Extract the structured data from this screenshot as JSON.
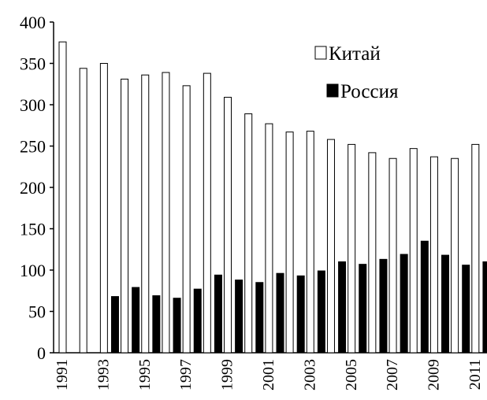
{
  "chart_data": {
    "type": "bar",
    "categories": [
      "1991",
      null,
      "1993",
      null,
      "1995",
      null,
      "1997",
      null,
      "1999",
      null,
      "2001",
      null,
      "2003",
      null,
      "2005",
      null,
      "2007",
      null,
      "2009",
      null,
      "2011"
    ],
    "series": [
      {
        "name": "Китай",
        "color": "#ffffff",
        "values": [
          376,
          344,
          350,
          331,
          336,
          339,
          323,
          338,
          309,
          289,
          277,
          267,
          268,
          258,
          252,
          242,
          235,
          247,
          237,
          235,
          252
        ]
      },
      {
        "name": "Россия",
        "color": "#000000",
        "values": [
          null,
          null,
          68,
          79,
          69,
          66,
          77,
          94,
          88,
          85,
          96,
          93,
          99,
          110,
          107,
          113,
          119,
          135,
          118,
          106,
          110
        ]
      }
    ],
    "ylim": [
      0,
      400
    ],
    "yticks": [
      0,
      50,
      100,
      150,
      200,
      250,
      300,
      350,
      400
    ],
    "grid": false
  }
}
